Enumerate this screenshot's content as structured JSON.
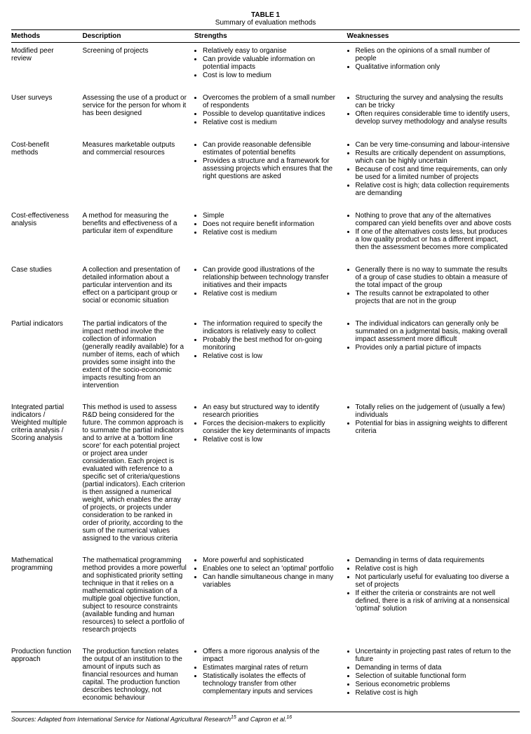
{
  "table_label": "TABLE 1",
  "caption": "Summary of evaluation methods",
  "headers": {
    "method": "Methods",
    "description": "Description",
    "strengths": "Strengths",
    "weaknesses": "Weaknesses"
  },
  "rows": [
    {
      "method": "Modified peer review",
      "description": "Screening of projects",
      "strengths": [
        "Relatively easy to organise",
        "Can provide valuable information on potential impacts",
        "Cost is low to medium"
      ],
      "weaknesses": [
        "Relies on the opinions of a small number of people",
        "Qualitative information only"
      ]
    },
    {
      "method": "User surveys",
      "description": "Assessing the use of a product or service for the person for whom it has been designed",
      "strengths": [
        "Overcomes the problem of a small number of respondents",
        "Possible to develop quantitative indices",
        "Relative cost is medium"
      ],
      "weaknesses": [
        "Structuring the survey and analysing the results can be tricky",
        "Often requires considerable time to identify users, develop survey methodology and analyse results"
      ]
    },
    {
      "method": "Cost-benefit methods",
      "description": "Measures marketable outputs and commercial resources",
      "strengths": [
        "Can provide reasonable defensible estimates of potential benefits",
        "Provides a structure and a framework for assessing projects which ensures that the right questions are asked"
      ],
      "weaknesses": [
        "Can be very time-consuming and labour-intensive",
        "Results are critically dependent on assumptions, which can be highly uncertain",
        "Because of cost and time requirements, can only be used for a limited number of projects",
        "Relative cost is high; data collection requirements are demanding"
      ]
    },
    {
      "method": "Cost-effectiveness analysis",
      "description": "A method for measuring the benefits and effectiveness of a particular item of expenditure",
      "strengths": [
        "Simple",
        "Does not require benefit information",
        "Relative cost is medium"
      ],
      "weaknesses": [
        "Nothing to prove that any of the alternatives compared can yield benefits over and above costs",
        "If one of the alternatives costs less, but produces a low quality product or has a different impact, then the assessment becomes more complicated"
      ]
    },
    {
      "method": "Case studies",
      "description": "A collection and presentation of detailed information about a particular intervention and its effect on a participant group or social or economic situation",
      "strengths": [
        "Can provide good illustrations of the relationship between technology transfer initiatives and their impacts",
        "Relative cost is medium"
      ],
      "weaknesses": [
        "Generally there is no way to summate the results of a group of case studies to obtain a measure of the total impact of the group",
        "The results cannot be extrapolated to other projects that are not in the group"
      ]
    },
    {
      "method": "Partial indicators",
      "description": "The partial indicators of the impact method involve the collection of information (generally readily available) for a number of items, each of which provides some insight into the extent of the socio-economic impacts resulting from an intervention",
      "strengths": [
        "The information required to specify the indicators is relatively easy to collect",
        "Probably the best method for on-going monitoring",
        "Relative cost is low"
      ],
      "weaknesses": [
        "The individual indicators can generally only be summated on a judgmental basis, making overall impact assessment more difficult",
        "Provides only a partial picture of impacts"
      ]
    },
    {
      "method": "Integrated partial indicators / Weighted multiple criteria analysis / Scoring analysis",
      "description": "This method  is used to assess R&D being considered for the future. The common approach is to summate the partial indicators and to arrive at a 'bottom line score' for each potential project or project area under consideration. Each project is evaluated with reference to a specific set of criteria/questions (partial indicators). Each criterion is then assigned a numerical weight, which enables the array of projects, or projects under consideration to be ranked in order of priority, according to the sum of the numerical values assigned to the various criteria",
      "strengths": [
        "An easy but structured way to identify research priorities",
        "Forces the decision-makers to explicitly consider the key determinants of impacts",
        "Relative cost is low"
      ],
      "weaknesses": [
        "Totally relies on the judgement of (usually a few) individuals",
        "Potential for bias in assigning weights to different criteria"
      ]
    },
    {
      "method": "Mathematical programming",
      "description": "The mathematical programming method provides a more powerful and sophisticated priority setting technique in that it relies on a mathematical optimisation of a multiple goal objective function, subject to resource constraints (available funding and human resources) to select a portfolio of research projects",
      "strengths": [
        "More powerful and sophisticated",
        "Enables one to select an 'optimal' portfolio",
        "Can handle simultaneous change in many variables"
      ],
      "weaknesses": [
        "Demanding in terms of data requirements",
        "Relative cost is high",
        "Not particularly useful for evaluating too diverse a set of projects",
        "If either the criteria or constraints are not well defined, there is a risk of arriving at a nonsensical 'optimal' solution"
      ]
    },
    {
      "method": "Production function approach",
      "description": "The production function relates the output of an institution to the amount of inputs such as financial resources and human capital. The production function describes technology, not economic behaviour",
      "strengths": [
        "Offers a more rigorous analysis of the impact",
        "Estimates marginal rates of return",
        "Statistically isolates the effects of technology transfer from other complementary inputs and services"
      ],
      "weaknesses": [
        "Uncertainty in projecting past rates of return to the future",
        "Demanding in terms of data",
        "Selection of suitable functional form",
        "Serious econometric problems",
        "Relative cost is high"
      ]
    }
  ],
  "sources_label": "Sources",
  "sources_text_1": ": Adapted from International Service for National Agricultural Research",
  "sources_sup_1": "15",
  "sources_text_2": " and Capron et al.",
  "sources_sup_2": "16"
}
